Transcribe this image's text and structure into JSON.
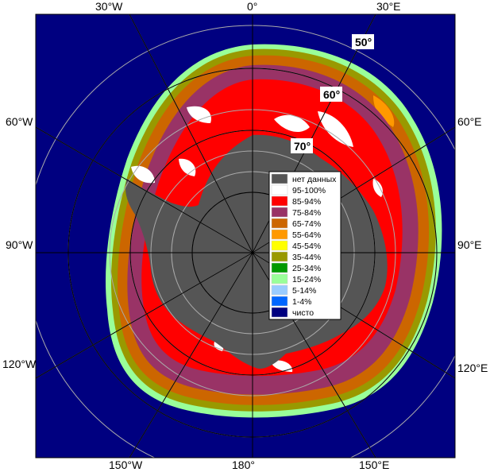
{
  "map": {
    "longitude_labels": {
      "w30": "30°W",
      "lon0": "0°",
      "e30": "30°E",
      "w60": "60°W",
      "e60": "60°E",
      "w90": "90°W",
      "e90": "90°E",
      "w120": "120°W",
      "e120": "120°E",
      "w150": "150°W",
      "lon180": "180°",
      "e150": "150°E"
    },
    "latitude_labels": {
      "lat50": "50°",
      "lat60": "60°",
      "lat70": "70°"
    }
  },
  "legend": {
    "items": [
      {
        "label": "нет данных",
        "color": "#555555"
      },
      {
        "label": "95-100%",
        "color": "#ffffff"
      },
      {
        "label": "85-94%",
        "color": "#ff0000"
      },
      {
        "label": "75-84%",
        "color": "#993366"
      },
      {
        "label": "65-74%",
        "color": "#cc6600"
      },
      {
        "label": "55-64%",
        "color": "#ff9900"
      },
      {
        "label": "45-54%",
        "color": "#ffff00"
      },
      {
        "label": "35-44%",
        "color": "#999900"
      },
      {
        "label": "25-34%",
        "color": "#009900"
      },
      {
        "label": "15-24%",
        "color": "#99ff99"
      },
      {
        "label": "5-14%",
        "color": "#99ccff"
      },
      {
        "label": "1-4%",
        "color": "#0066ff"
      },
      {
        "label": "чисто",
        "color": "#000080"
      }
    ]
  },
  "colors": {
    "ocean": "#000080",
    "land": "#555555",
    "grid": "#aaaaaa"
  }
}
